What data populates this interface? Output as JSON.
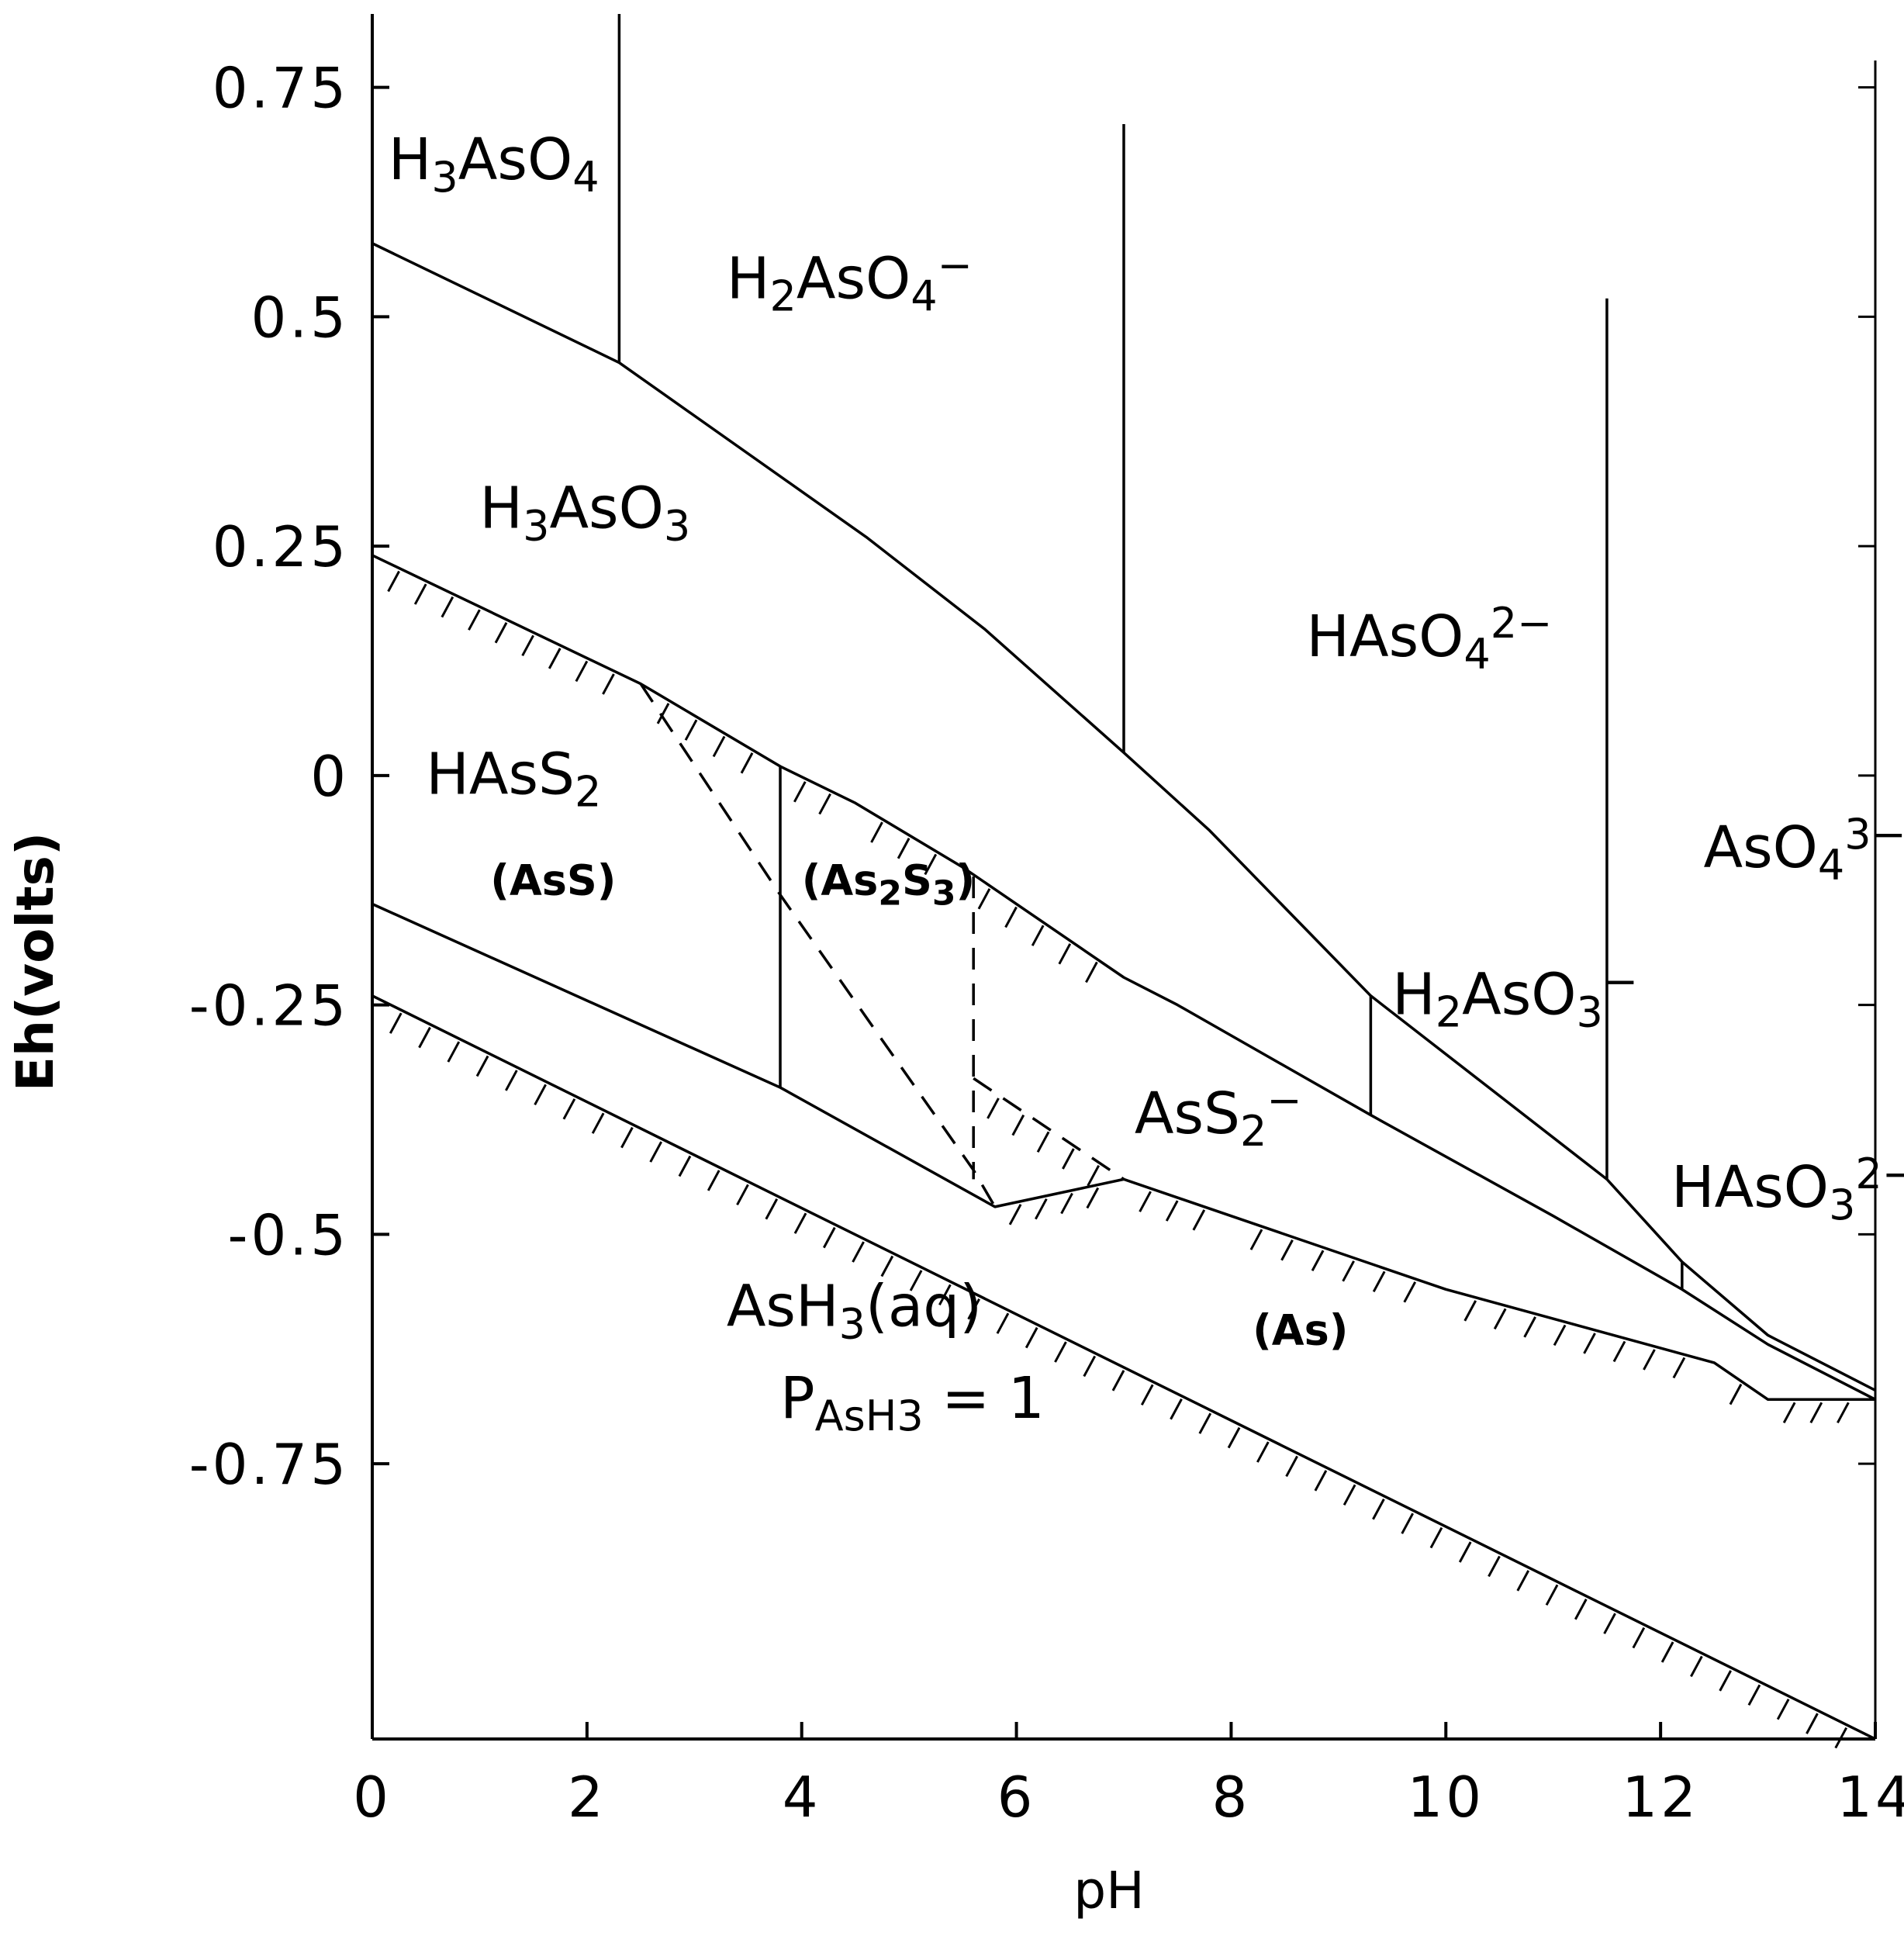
{
  "chart_data": {
    "type": "line",
    "title": "",
    "xlabel": "pH",
    "ylabel": "Eh(volts)",
    "xlim": [
      0,
      14
    ],
    "ylim": [
      -1.05,
      0.83
    ],
    "x_ticks": [
      0,
      2,
      4,
      6,
      8,
      10,
      12,
      14
    ],
    "x_tick_labels": [
      "0",
      "2",
      "4",
      "6",
      "8",
      "10",
      "12",
      "14"
    ],
    "y_ticks": [
      0.75,
      0.5,
      0.25,
      0,
      -0.25,
      -0.5,
      -0.75
    ],
    "y_tick_labels": [
      "0.75",
      "0.5",
      "0.25",
      "0",
      "-0.25",
      "-0.5",
      "-0.75"
    ],
    "grid": false,
    "legend": "none",
    "series": [
      {
        "style": "solid",
        "x": [
          0,
          2.3,
          4.6,
          5.7,
          7.0,
          7.8,
          9.3,
          11.5,
          12.2,
          13.0,
          14.0
        ],
        "y": [
          0.58,
          0.45,
          0.26,
          0.16,
          0.025,
          -0.06,
          -0.24,
          -0.44,
          -0.53,
          -0.61,
          -0.67
        ]
      },
      {
        "style": "solid",
        "x": [
          0,
          2.5,
          3.8,
          4.5,
          5.5,
          7.0,
          7.5,
          9.3,
          11.0,
          12.2,
          13.0,
          14.0
        ],
        "y": [
          0.24,
          0.1,
          0.01,
          -0.03,
          -0.1,
          -0.22,
          -0.25,
          -0.37,
          -0.48,
          -0.56,
          -0.62,
          -0.68
        ]
      },
      {
        "style": "solid",
        "x": [
          0,
          3.8,
          5.8,
          7.0,
          8.0,
          10.0,
          12.5,
          13.0,
          14.0
        ],
        "y": [
          -0.14,
          -0.34,
          -0.47,
          -0.44,
          -0.48,
          -0.56,
          -0.64,
          -0.68,
          -0.68
        ]
      },
      {
        "style": "solid",
        "x": [
          0,
          14.0
        ],
        "y": [
          -0.24,
          -1.05
        ]
      },
      {
        "style": "dashed",
        "x": [
          2.5,
          3.8,
          5.6,
          5.8
        ],
        "y": [
          0.1,
          -0.13,
          -0.43,
          -0.47
        ]
      },
      {
        "style": "dashed",
        "x": [
          5.6,
          5.6
        ],
        "y": [
          -0.11,
          -0.44
        ]
      },
      {
        "style": "dashed",
        "x": [
          5.6,
          7.0
        ],
        "y": [
          -0.33,
          -0.44
        ]
      },
      {
        "style": "solid",
        "x": [
          2.3,
          2.3
        ],
        "y": [
          0.83,
          0.45
        ]
      },
      {
        "style": "solid",
        "x": [
          7.0,
          7.0
        ],
        "y": [
          0.71,
          0.025
        ]
      },
      {
        "style": "solid",
        "x": [
          11.5,
          11.5
        ],
        "y": [
          0.52,
          -0.44
        ]
      },
      {
        "style": "solid",
        "x": [
          3.8,
          3.8
        ],
        "y": [
          0.01,
          -0.34
        ]
      },
      {
        "style": "solid",
        "x": [
          9.3,
          9.3
        ],
        "y": [
          -0.24,
          -0.37
        ]
      },
      {
        "style": "solid",
        "x": [
          12.2,
          12.2
        ],
        "y": [
          -0.53,
          -0.56
        ]
      }
    ],
    "annotations": [
      {
        "base": "H",
        "sub": "3",
        "rest": "AsO",
        "sub2": "4",
        "sup": "",
        "x": 0.15,
        "y": 0.65
      },
      {
        "base": "H",
        "sub": "2",
        "rest": "AsO",
        "sub2": "4",
        "sup": "−",
        "x": 3.3,
        "y": 0.52
      },
      {
        "base": "H",
        "sub": "3",
        "rest": "AsO",
        "sub2": "3",
        "sup": "",
        "x": 1.0,
        "y": 0.27
      },
      {
        "base": "HAsO",
        "sub": "4",
        "rest": "",
        "sub2": "",
        "sup": "2−",
        "x": 8.7,
        "y": 0.13
      },
      {
        "base": "HAsS",
        "sub": "2",
        "rest": "",
        "sub2": "",
        "sup": "",
        "x": 0.5,
        "y": -0.02
      },
      {
        "base": "AsO",
        "sub": "4",
        "rest": "",
        "sub2": "",
        "sup": "3−",
        "x": 12.4,
        "y": -0.1
      },
      {
        "base": "H",
        "sub": "2",
        "rest": "AsO",
        "sub2": "3",
        "sup": "−",
        "x": 9.5,
        "y": -0.26
      },
      {
        "base": "AsS",
        "sub": "2",
        "rest": "",
        "sub2": "",
        "sup": "−",
        "x": 7.1,
        "y": -0.39
      },
      {
        "base": "HAsO",
        "sub": "3",
        "rest": "",
        "sub2": "",
        "sup": "2−",
        "x": 12.1,
        "y": -0.47
      },
      {
        "base": "AsH",
        "sub": "3",
        "rest": "(aq)",
        "sub2": "",
        "sup": "",
        "x": 3.3,
        "y": -0.6
      },
      {
        "base": "P",
        "sub": "AsH3",
        "rest": "  =  1",
        "sub2": "",
        "sup": "",
        "x": 3.8,
        "y": -0.7
      }
    ],
    "phase_labels": [
      {
        "text": "(AsS)",
        "x": 1.1,
        "y": -0.13
      },
      {
        "text": "(As",
        "sub": "2",
        "rest": "S",
        "sub2": "3",
        "tail": ")",
        "x": 4.0,
        "y": -0.13
      },
      {
        "text": "(As)",
        "x": 8.2,
        "y": -0.62
      }
    ]
  }
}
